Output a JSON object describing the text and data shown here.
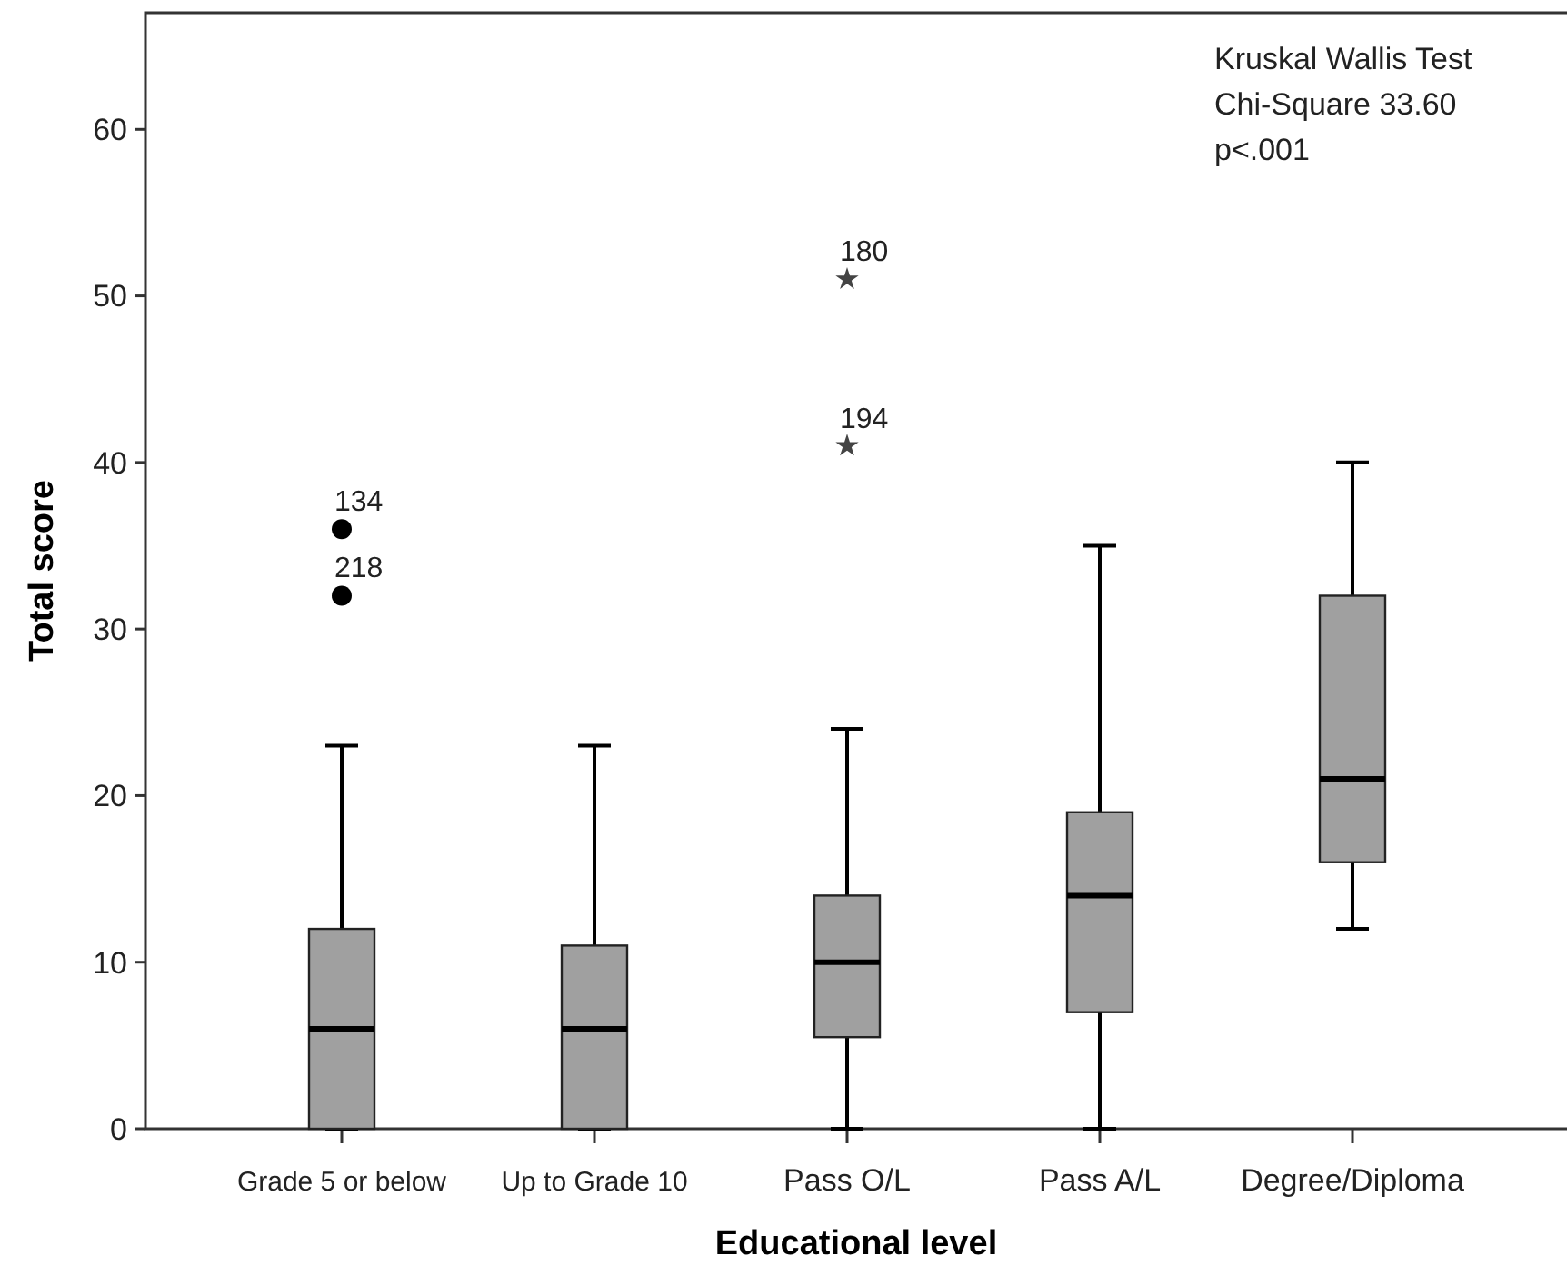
{
  "chart_data": {
    "type": "box",
    "xlabel": "Educational level",
    "ylabel": "Total score",
    "categories": [
      "Grade 5 or below",
      "Up to Grade 10",
      "Pass O/L",
      "Pass A/L",
      "Degree/Diploma"
    ],
    "ylim": [
      0,
      67
    ],
    "yticks": [
      0,
      10,
      20,
      30,
      40,
      50,
      60
    ],
    "grid": false,
    "series": [
      {
        "color": "#a0a0a0",
        "boxes": [
          {
            "low": 0,
            "q1": 0,
            "median": 6,
            "q3": 12,
            "high": 23
          },
          {
            "low": 0,
            "q1": 0,
            "median": 6,
            "q3": 11,
            "high": 23
          },
          {
            "low": 0,
            "q1": 5.5,
            "median": 10,
            "q3": 14,
            "high": 24
          },
          {
            "low": 0,
            "q1": 7,
            "median": 14,
            "q3": 19,
            "high": 35
          },
          {
            "low": 12,
            "q1": 16,
            "median": 21,
            "q3": 32,
            "high": 40
          }
        ]
      },
      {
        "type": "scatter",
        "color": "#000000",
        "marker": "circle",
        "x": [
          "Grade 5 or below",
          "Grade 5 or below"
        ],
        "values": [
          36,
          32
        ]
      },
      {
        "type": "scatter",
        "color": "#444444",
        "marker": "star",
        "x": [
          "Pass O/L",
          "Pass O/L"
        ],
        "values": [
          51,
          41
        ]
      }
    ],
    "annotations": [
      {
        "text": "134",
        "x": "Grade 5 or below",
        "y": 36
      },
      {
        "text": "218",
        "x": "Grade 5 or below",
        "y": 32
      },
      {
        "text": "180",
        "x": "Pass O/L",
        "y": 51
      },
      {
        "text": "194",
        "x": "Pass O/L",
        "y": 41
      },
      "Kruskal Wallis Test",
      "Chi-Square 33.60",
      "p<.001"
    ]
  }
}
